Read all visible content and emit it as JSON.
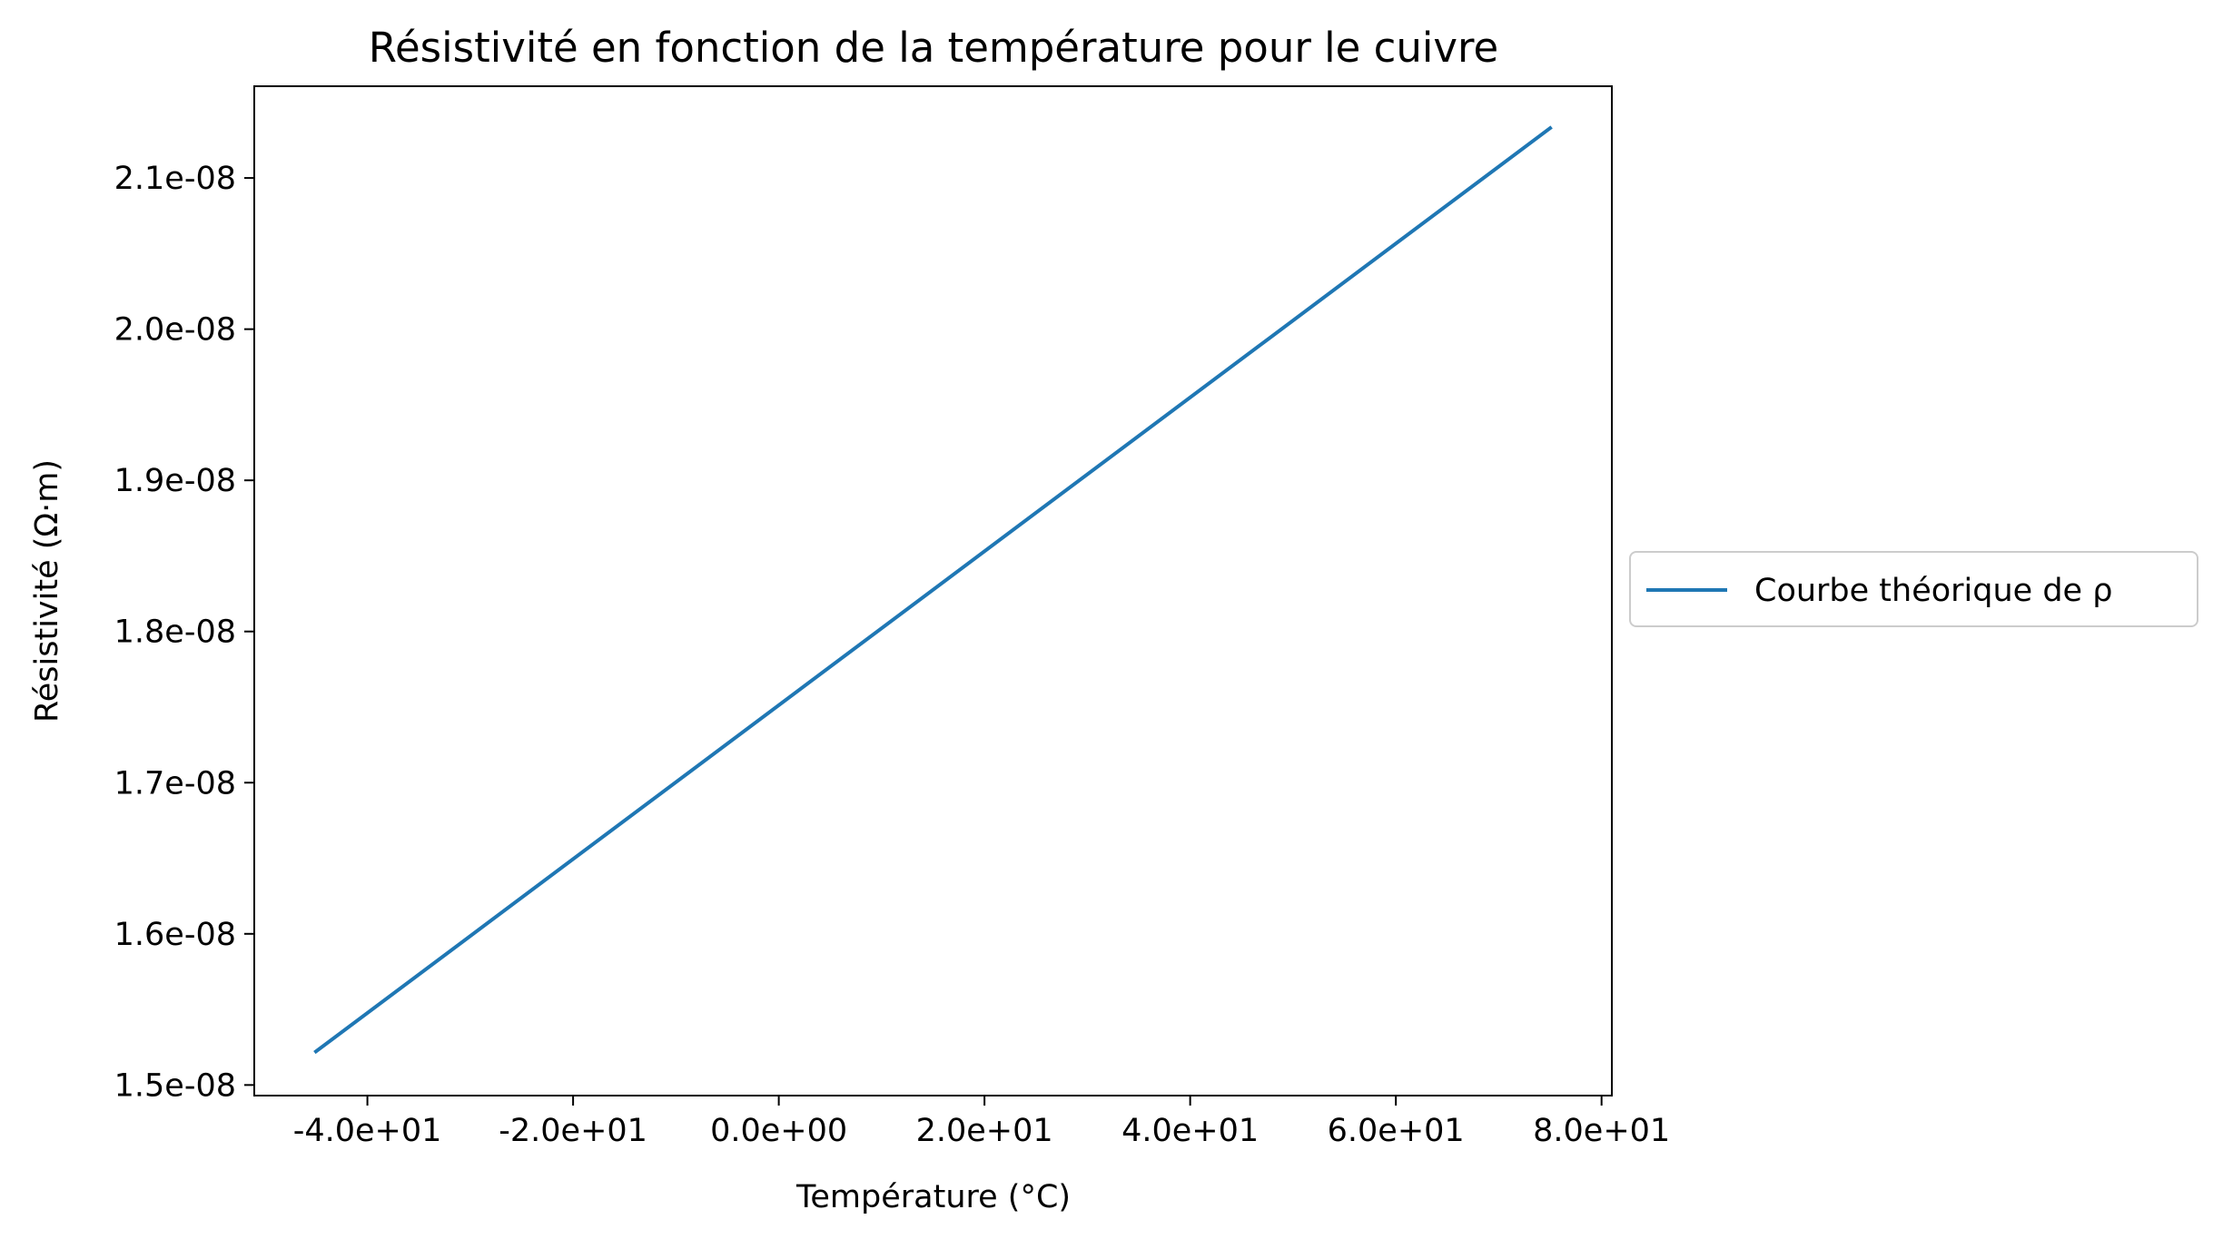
{
  "chart_data": {
    "type": "line",
    "title": "Résistivité en fonction de la température pour le cuivre",
    "xlabel": "Température (°C)",
    "ylabel": "Résistivité (Ω·m)",
    "xlim": [
      -51,
      81
    ],
    "ylim": [
      1.493e-08,
      2.1607e-08
    ],
    "xticks": [
      -40,
      -20,
      0,
      20,
      40,
      60,
      80
    ],
    "xtick_labels": [
      "-4.0e+01",
      "-2.0e+01",
      "0.0e+00",
      "2.0e+01",
      "4.0e+01",
      "6.0e+01",
      "8.0e+01"
    ],
    "yticks": [
      1.5e-08,
      1.6e-08,
      1.7e-08,
      1.8e-08,
      1.9e-08,
      2e-08,
      2.1e-08
    ],
    "ytick_labels": [
      "1.5e-08",
      "1.6e-08",
      "1.7e-08",
      "1.8e-08",
      "1.9e-08",
      "2.0e-08",
      "2.1e-08"
    ],
    "grid": false,
    "legend_position": "right-outside",
    "series": [
      {
        "name": "Courbe théorique de ρ",
        "color": "#1f77b4",
        "x": [
          -45,
          75
        ],
        "y": [
          1.5222e-08,
          2.133e-08
        ]
      }
    ]
  }
}
